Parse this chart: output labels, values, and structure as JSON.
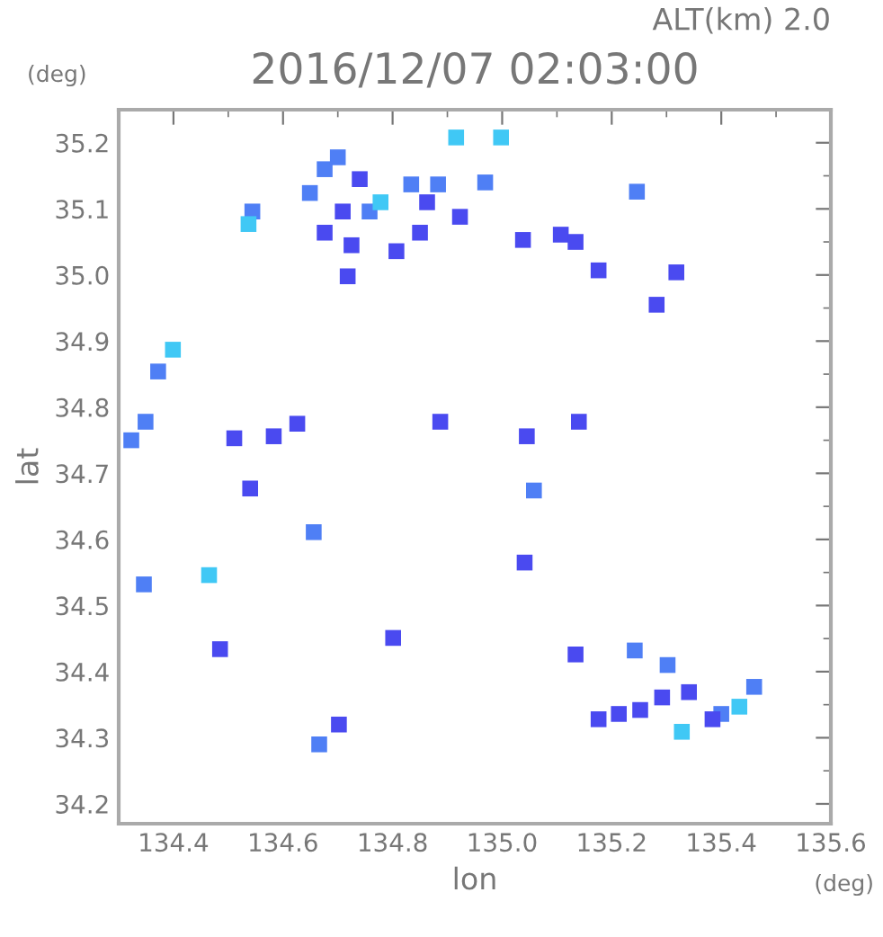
{
  "chart_data": {
    "type": "scatter",
    "title": "2016/12/07 02:03:00",
    "subtitle": "ALT(km) 2.0",
    "xlabel": "lon",
    "ylabel": "lat",
    "annotations": [
      "(deg)",
      "(deg)"
    ],
    "x": [
      134.676,
      134.7,
      134.74,
      134.649,
      134.709,
      134.676,
      134.758,
      134.778,
      134.725,
      134.544,
      134.537,
      134.834,
      134.883,
      134.863,
      134.85,
      134.923,
      134.969,
      134.916,
      134.998,
      134.718,
      135.038,
      134.807,
      135.246,
      135.107,
      135.134,
      135.318,
      135.282,
      135.176,
      134.323,
      134.349,
      134.511,
      134.583,
      134.626,
      134.54,
      134.656,
      134.346,
      134.465,
      134.485,
      134.702,
      134.666,
      134.801,
      135.058,
      134.887,
      134.372,
      134.399,
      135.242,
      135.302,
      135.292,
      135.252,
      135.213,
      135.176,
      135.341,
      135.4,
      135.433,
      135.46,
      135.384,
      135.328,
      135.134,
      135.041,
      135.14,
      135.045
    ],
    "values": [
      35.16,
      35.178,
      35.145,
      35.124,
      35.096,
      35.064,
      35.096,
      35.11,
      35.045,
      35.096,
      35.077,
      35.137,
      35.137,
      35.11,
      35.064,
      35.088,
      35.14,
      35.208,
      35.208,
      34.998,
      35.053,
      35.036,
      35.126,
      35.061,
      35.05,
      35.004,
      34.955,
      35.007,
      34.75,
      34.778,
      34.753,
      34.756,
      34.775,
      34.677,
      34.611,
      34.532,
      34.546,
      34.434,
      34.32,
      34.29,
      34.451,
      34.674,
      34.778,
      34.854,
      34.887,
      34.432,
      34.41,
      34.361,
      34.342,
      34.336,
      34.328,
      34.369,
      34.336,
      34.347,
      34.377,
      34.328,
      34.309,
      34.426,
      34.565,
      34.778,
      34.756
    ],
    "colors": [
      "#4f7ff5",
      "#4f7ff5",
      "#4a4af0",
      "#4f7ff5",
      "#4a4af0",
      "#4a4af0",
      "#4f7ff5",
      "#40c8f5",
      "#4a4af0",
      "#4f7ff5",
      "#40c8f5",
      "#4f7ff5",
      "#4f7ff5",
      "#4a4af0",
      "#4a4af0",
      "#4a4af0",
      "#4f7ff5",
      "#40c8f5",
      "#40c8f5",
      "#4a4af0",
      "#4a4af0",
      "#4a4af0",
      "#4f7ff5",
      "#4a4af0",
      "#4a4af0",
      "#4a4af0",
      "#4a4af0",
      "#4a4af0",
      "#4f7ff5",
      "#4f7ff5",
      "#4a4af0",
      "#4a4af0",
      "#4a4af0",
      "#4a4af0",
      "#4f7ff5",
      "#4f7ff5",
      "#40c8f5",
      "#4a4af0",
      "#4a4af0",
      "#4f7ff5",
      "#4a4af0",
      "#4f7ff5",
      "#4a4af0",
      "#4f7ff5",
      "#40c8f5",
      "#4f7ff5",
      "#4f7ff5",
      "#4a4af0",
      "#4a4af0",
      "#4a4af0",
      "#4a4af0",
      "#4a4af0",
      "#4f7ff5",
      "#40c8f5",
      "#4f7ff5",
      "#4a4af0",
      "#40c8f5",
      "#4a4af0",
      "#4a4af0",
      "#4a4af0",
      "#4a4af0"
    ],
    "marker": "square",
    "grid": false,
    "legend": false,
    "xlim": [
      134.3,
      135.6
    ],
    "ylim": [
      34.17,
      35.25
    ],
    "xticks": [
      134.4,
      134.6,
      134.8,
      {
        "value": 135.0,
        "label": "135.0"
      },
      135.2,
      135.4,
      135.6
    ],
    "yticks": [
      34.2,
      34.3,
      34.4,
      34.5,
      34.6,
      34.7,
      34.8,
      34.9,
      {
        "value": 35.0,
        "label": "35.0"
      },
      35.1,
      35.2
    ]
  }
}
